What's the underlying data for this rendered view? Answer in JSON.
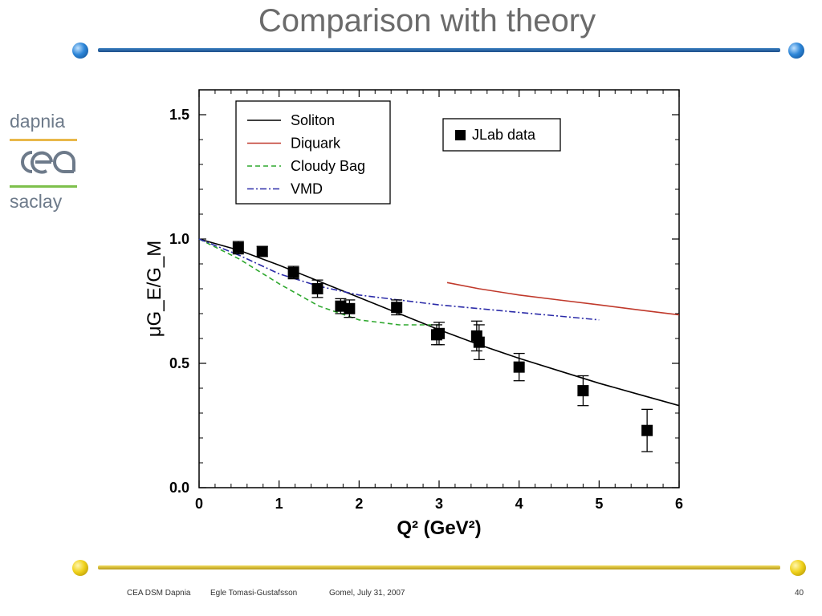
{
  "slide": {
    "title": "Comparison with theory",
    "logo": {
      "top": "dapnia",
      "middle": "cea",
      "bottom": "saclay"
    },
    "footer": {
      "org": "CEA DSM Dapnia",
      "author": "Egle Tomasi-Gustafsson",
      "venue_date": "Gomel, July 31, 2007",
      "page": "40"
    }
  },
  "chart_data": {
    "type": "line",
    "xlabel": "Q² (GeV²)",
    "ylabel": "μG_E/G_M",
    "xlim": [
      0,
      6
    ],
    "ylim": [
      0,
      1.6
    ],
    "xticks": [
      "0",
      "1",
      "2",
      "3",
      "4",
      "5",
      "6"
    ],
    "yticks": [
      "0.0",
      "0.5",
      "1.0",
      "1.5"
    ],
    "grid": false,
    "legend": {
      "placement": "top-left",
      "entries": [
        "Soliton",
        "Diquark",
        "Cloudy Bag",
        "VMD"
      ]
    },
    "data_legend": {
      "placement": "top-right",
      "label": "JLab data"
    },
    "series": [
      {
        "name": "Soliton",
        "style": "solid",
        "color": "#000000",
        "x": [
          0,
          0.5,
          1,
          1.5,
          2,
          2.5,
          3,
          3.5,
          4,
          4.5,
          5,
          5.5,
          6
        ],
        "y": [
          1.0,
          0.955,
          0.895,
          0.83,
          0.765,
          0.7,
          0.635,
          0.575,
          0.52,
          0.47,
          0.42,
          0.375,
          0.33
        ]
      },
      {
        "name": "Diquark",
        "style": "solid",
        "color": "#c0392b",
        "x": [
          3.1,
          3.5,
          4,
          4.5,
          5,
          5.5,
          6
        ],
        "y": [
          0.825,
          0.8,
          0.775,
          0.755,
          0.735,
          0.715,
          0.695
        ]
      },
      {
        "name": "Cloudy Bag",
        "style": "dashed",
        "color": "#2ea82e",
        "x": [
          0,
          0.5,
          1,
          1.5,
          2,
          2.5,
          3
        ],
        "y": [
          1.0,
          0.92,
          0.82,
          0.73,
          0.675,
          0.655,
          0.655
        ]
      },
      {
        "name": "VMD",
        "style": "dashdot",
        "color": "#2b2ba8",
        "x": [
          0,
          0.5,
          1,
          1.5,
          2,
          2.5,
          3,
          3.5,
          4,
          4.5,
          5
        ],
        "y": [
          1.0,
          0.935,
          0.86,
          0.81,
          0.775,
          0.755,
          0.735,
          0.72,
          0.705,
          0.69,
          0.675
        ]
      },
      {
        "name": "JLab data",
        "type": "scatter",
        "color": "#000000",
        "points": [
          {
            "x": 0.49,
            "y": 0.965,
            "err": 0.025
          },
          {
            "x": 0.79,
            "y": 0.95,
            "err": 0.02
          },
          {
            "x": 1.18,
            "y": 0.865,
            "err": 0.025
          },
          {
            "x": 1.48,
            "y": 0.8,
            "err": 0.035
          },
          {
            "x": 1.77,
            "y": 0.73,
            "err": 0.03
          },
          {
            "x": 1.88,
            "y": 0.72,
            "err": 0.035
          },
          {
            "x": 2.47,
            "y": 0.725,
            "err": 0.03
          },
          {
            "x": 2.97,
            "y": 0.615,
            "err": 0.04
          },
          {
            "x": 3.0,
            "y": 0.62,
            "err": 0.045
          },
          {
            "x": 3.47,
            "y": 0.61,
            "err": 0.06
          },
          {
            "x": 3.5,
            "y": 0.585,
            "err": 0.07
          },
          {
            "x": 4.0,
            "y": 0.485,
            "err": 0.055
          },
          {
            "x": 4.8,
            "y": 0.39,
            "err": 0.06
          },
          {
            "x": 5.6,
            "y": 0.23,
            "err": 0.085
          }
        ]
      }
    ]
  }
}
